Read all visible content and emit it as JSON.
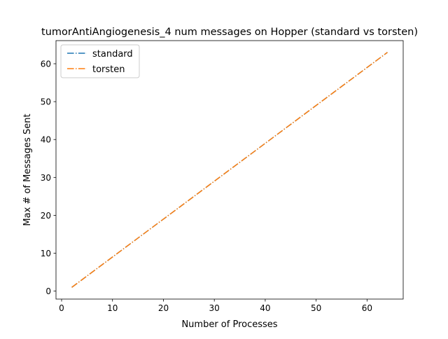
{
  "chart_data": {
    "type": "line",
    "title": "tumorAntiAngiogenesis_4 num messages on Hopper (standard vs torsten)",
    "xlabel": "Number of Processes",
    "ylabel": "Max # of Messages Sent",
    "xlim": [
      -1.1,
      67.1
    ],
    "ylim": [
      -2.1,
      66.1
    ],
    "xticks": [
      0,
      10,
      20,
      30,
      40,
      50,
      60
    ],
    "yticks": [
      0,
      10,
      20,
      30,
      40,
      50,
      60
    ],
    "grid": false,
    "legend_position": "upper left",
    "series": [
      {
        "name": "standard",
        "color": "#1f77b4",
        "linestyle": "dashdot",
        "x": [
          2,
          64
        ],
        "y": [
          1,
          63
        ]
      },
      {
        "name": "torsten",
        "color": "#ff7f0e",
        "linestyle": "dashdot",
        "x": [
          2,
          64
        ],
        "y": [
          1,
          63
        ]
      }
    ]
  }
}
